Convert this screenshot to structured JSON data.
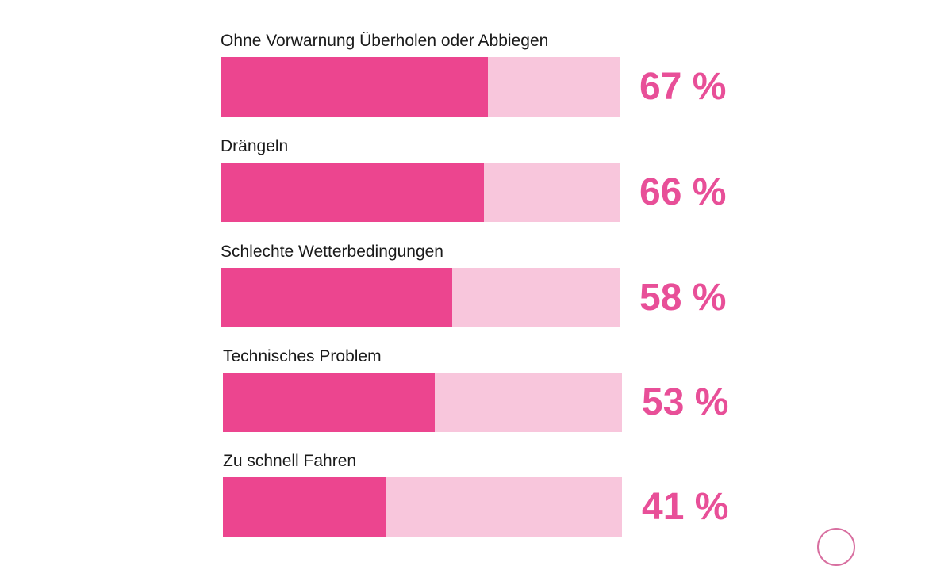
{
  "chart_data": {
    "type": "bar",
    "orientation": "horizontal",
    "categories": [
      "Ohne Vorwarnung Überholen oder Abbiegen",
      "Drängeln",
      "Schlechte Wetterbedingungen",
      "Technisches Problem",
      "Zu schnell Fahren"
    ],
    "values": [
      67,
      66,
      58,
      53,
      41
    ],
    "value_labels": [
      "67 %",
      "66 %",
      "58 %",
      "53 %",
      "41 %"
    ],
    "xlim": [
      0,
      100
    ],
    "grid": false,
    "colors": {
      "bar": "#ec458f",
      "track": "#f8c6dc",
      "value_text": "#e84f98"
    }
  }
}
